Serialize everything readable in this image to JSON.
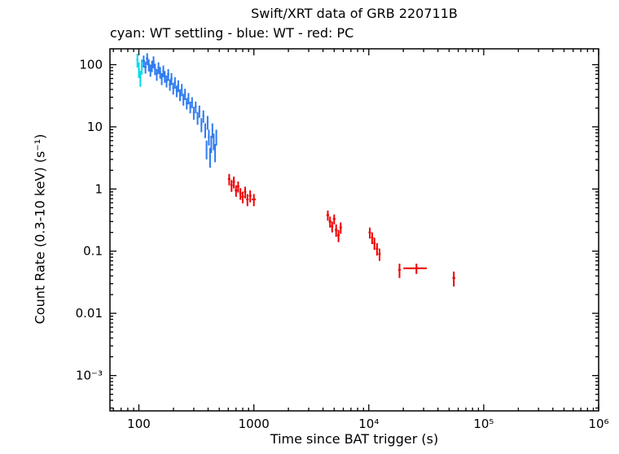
{
  "chart_data": {
    "type": "scatter",
    "title": "Swift/XRT data of GRB 220711B",
    "subtitle": "cyan: WT settling - blue: WT - red: PC",
    "xlabel": "Time since BAT trigger (s)",
    "ylabel": "Count Rate (0.3-10 keV) (s⁻¹)",
    "xscale": "log",
    "yscale": "log",
    "xlim": [
      56,
      1000000
    ],
    "ylim": [
      0.00027,
      180
    ],
    "grid": false,
    "x_ticks": [
      {
        "value": 100,
        "label": "100"
      },
      {
        "value": 1000,
        "label": "1000"
      },
      {
        "value": 10000,
        "label": "10⁴"
      },
      {
        "value": 100000,
        "label": "10⁵"
      },
      {
        "value": 1000000,
        "label": "10⁶"
      }
    ],
    "y_ticks": [
      {
        "value": 100,
        "label": "100"
      },
      {
        "value": 10,
        "label": "10"
      },
      {
        "value": 1,
        "label": "1"
      },
      {
        "value": 0.1,
        "label": "0.1"
      },
      {
        "value": 0.01,
        "label": "0.01"
      },
      {
        "value": 0.001,
        "label": "10⁻³"
      }
    ],
    "series": [
      {
        "name": "WT settling",
        "color": "#00dde8",
        "points": [
          [
            97,
            120,
            30,
            2
          ],
          [
            100,
            85,
            24,
            2
          ],
          [
            103,
            62,
            18,
            2
          ],
          [
            106,
            95,
            26,
            2
          ]
        ]
      },
      {
        "name": "WT",
        "color": "#2e7bf0",
        "points": [
          [
            110,
            115,
            25,
            3
          ],
          [
            114,
            92,
            20,
            3
          ],
          [
            118,
            126,
            27,
            3
          ],
          [
            122,
            100,
            22,
            3
          ],
          [
            126,
            82,
            18,
            3
          ],
          [
            130,
            96,
            20,
            3
          ],
          [
            134,
            112,
            24,
            3
          ],
          [
            138,
            86,
            18,
            3
          ],
          [
            143,
            70,
            15,
            3
          ],
          [
            148,
            90,
            19,
            3
          ],
          [
            153,
            76,
            16,
            3
          ],
          [
            158,
            60,
            13,
            3
          ],
          [
            163,
            80,
            17,
            3
          ],
          [
            168,
            65,
            14,
            3
          ],
          [
            174,
            55,
            12,
            4
          ],
          [
            180,
            70,
            15,
            4
          ],
          [
            186,
            48,
            10,
            4
          ],
          [
            192,
            60,
            13,
            4
          ],
          [
            199,
            42,
            9,
            4
          ],
          [
            206,
            52,
            11,
            4
          ],
          [
            213,
            38,
            8,
            4
          ],
          [
            220,
            46,
            10,
            4
          ],
          [
            228,
            33,
            7,
            4
          ],
          [
            236,
            40,
            9,
            4
          ],
          [
            244,
            28,
            6,
            4
          ],
          [
            252,
            34,
            7,
            4
          ],
          [
            261,
            24,
            5,
            5
          ],
          [
            270,
            29,
            6,
            5
          ],
          [
            280,
            21,
            4.5,
            5
          ],
          [
            290,
            25,
            5,
            5
          ],
          [
            300,
            17,
            4,
            5
          ],
          [
            312,
            21,
            4.5,
            6
          ],
          [
            324,
            14,
            3.2,
            6
          ],
          [
            336,
            18,
            4,
            6
          ],
          [
            350,
            11,
            2.8,
            6
          ],
          [
            364,
            15,
            3.4,
            7
          ],
          [
            378,
            9,
            2.4,
            7
          ],
          [
            388,
            4.5,
            1.5,
            6
          ],
          [
            396,
            12,
            3,
            7
          ],
          [
            406,
            7,
            2,
            7
          ],
          [
            416,
            3.4,
            1.2,
            6
          ],
          [
            426,
            5.5,
            1.7,
            6
          ],
          [
            436,
            9,
            2.4,
            7
          ],
          [
            448,
            6,
            1.8,
            7
          ],
          [
            460,
            4,
            1.3,
            7
          ],
          [
            472,
            7,
            2,
            7
          ]
        ]
      },
      {
        "name": "PC",
        "color": "#ee0000",
        "points": [
          [
            610,
            1.45,
            0.3,
            15
          ],
          [
            640,
            1.15,
            0.25,
            15
          ],
          [
            670,
            1.3,
            0.28,
            15
          ],
          [
            700,
            0.95,
            0.2,
            18
          ],
          [
            730,
            1.1,
            0.22,
            18
          ],
          [
            765,
            0.85,
            0.18,
            18
          ],
          [
            800,
            0.75,
            0.16,
            20
          ],
          [
            840,
            0.9,
            0.19,
            20
          ],
          [
            880,
            0.68,
            0.15,
            22
          ],
          [
            930,
            0.78,
            0.17,
            24
          ],
          [
            1000,
            0.68,
            0.15,
            40
          ],
          [
            4400,
            0.38,
            0.07,
            120
          ],
          [
            4600,
            0.3,
            0.06,
            120
          ],
          [
            4800,
            0.25,
            0.05,
            120
          ],
          [
            5000,
            0.33,
            0.06,
            130
          ],
          [
            5200,
            0.22,
            0.05,
            130
          ],
          [
            5450,
            0.18,
            0.04,
            140
          ],
          [
            5700,
            0.24,
            0.05,
            140
          ],
          [
            10200,
            0.2,
            0.04,
            250
          ],
          [
            10700,
            0.165,
            0.035,
            250
          ],
          [
            11200,
            0.135,
            0.03,
            260
          ],
          [
            11800,
            0.11,
            0.025,
            280
          ],
          [
            12400,
            0.09,
            0.02,
            300
          ],
          [
            18500,
            0.05,
            0.013,
            500
          ],
          [
            26000,
            0.053,
            0.01,
            6000
          ],
          [
            55000,
            0.037,
            0.01,
            1500
          ]
        ]
      }
    ]
  }
}
